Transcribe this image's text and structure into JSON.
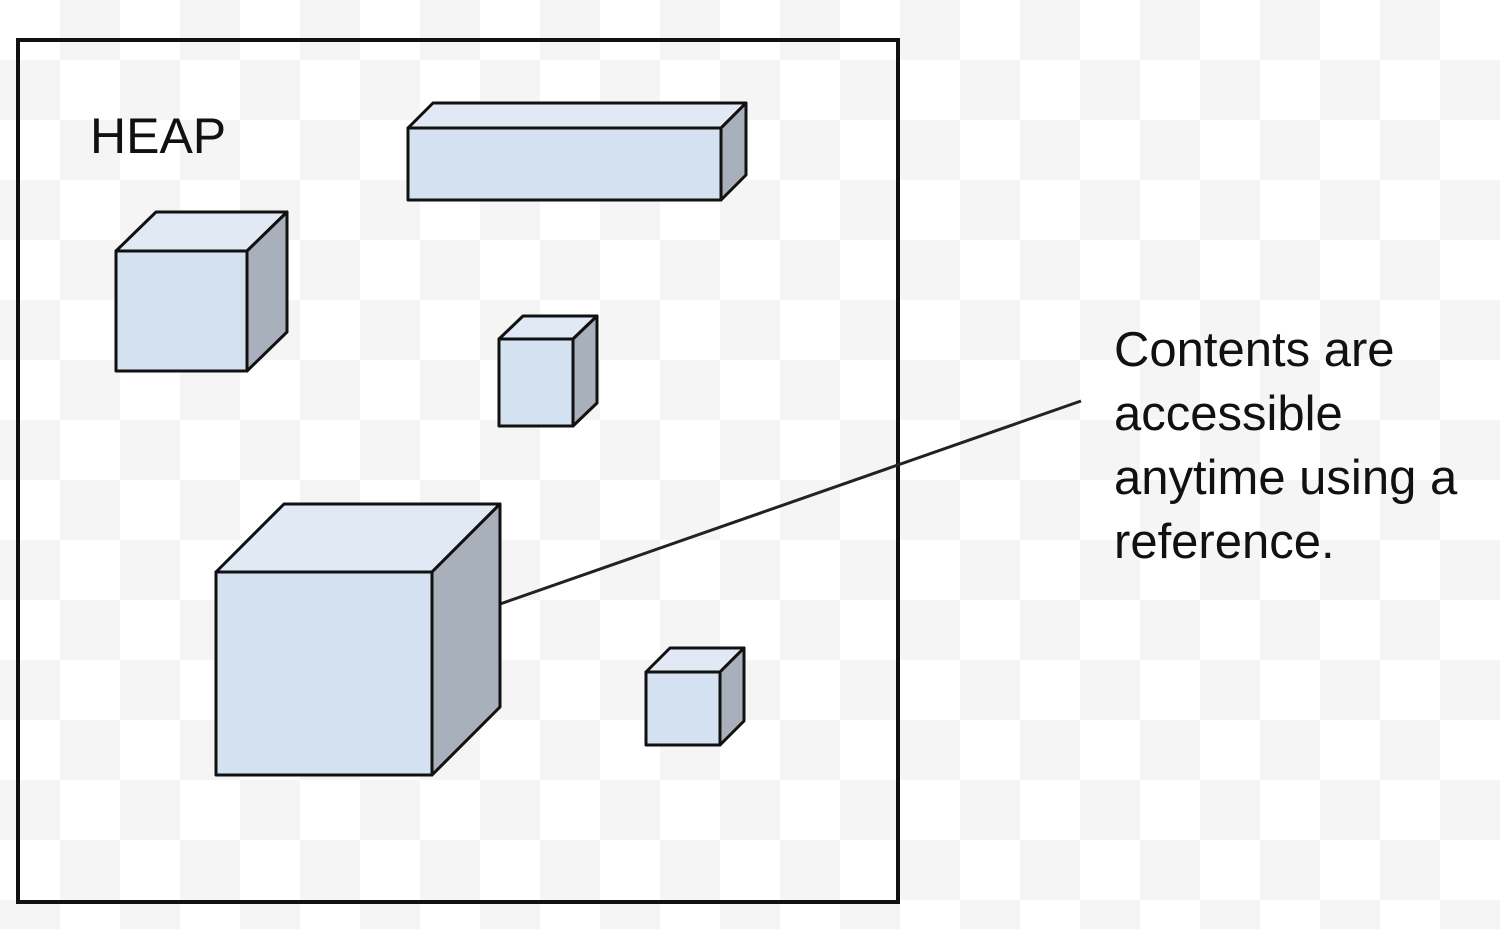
{
  "heap_label": "HEAP",
  "callout": {
    "lines": [
      "Contents are",
      "accessible",
      "anytime using a",
      "reference."
    ]
  },
  "colors": {
    "face_front": "#d3e1f0",
    "face_top": "#e0e9f4",
    "face_side": "#a7b0bb",
    "stroke": "#111111",
    "connector": "#222222"
  },
  "objects": [
    {
      "name": "wide-bar-object"
    },
    {
      "name": "medium-cube-object"
    },
    {
      "name": "small-cube-object"
    },
    {
      "name": "large-cube-object"
    },
    {
      "name": "tiny-cube-object"
    }
  ]
}
